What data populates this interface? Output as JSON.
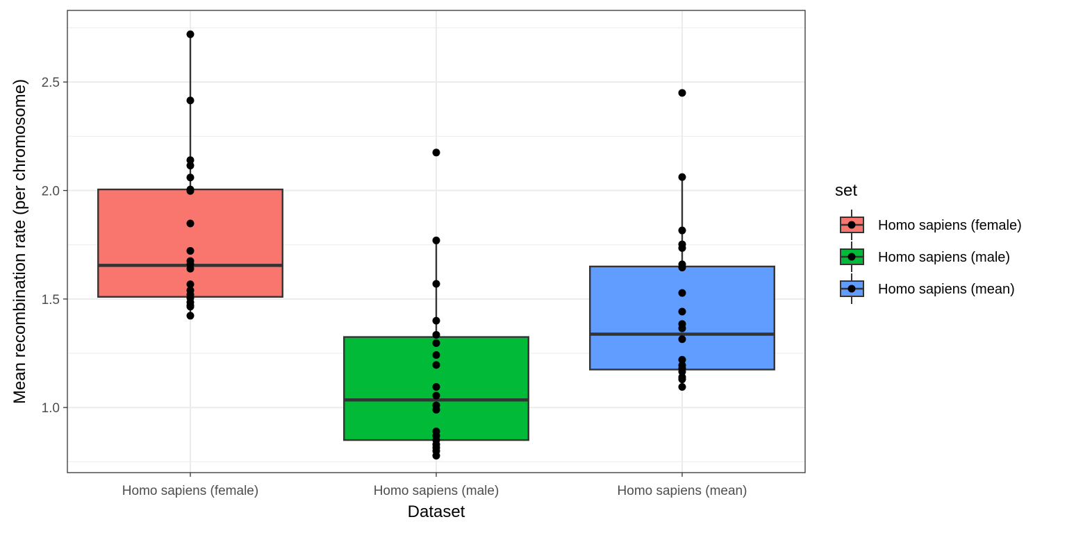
{
  "chart_data": {
    "type": "box",
    "xlabel": "Dataset",
    "ylabel": "Mean recombination rate (per chromosome)",
    "categories": [
      "Homo sapiens (female)",
      "Homo sapiens (male)",
      "Homo sapiens (mean)"
    ],
    "ylim": [
      0.7,
      2.83
    ],
    "yticks": [
      1.0,
      1.5,
      2.0,
      2.5
    ],
    "ytick_labels": [
      "1.0",
      "1.5",
      "2.0",
      "2.5"
    ],
    "grid": true,
    "legend": {
      "title": "set",
      "position": "right",
      "entries": [
        "Homo sapiens (female)",
        "Homo sapiens (male)",
        "Homo sapiens (mean)"
      ]
    },
    "colors": [
      "#F8766D",
      "#00BA38",
      "#619CFF"
    ],
    "series": [
      {
        "name": "Homo sapiens (female)",
        "box": {
          "q1": 1.51,
          "median": 1.655,
          "q3": 2.005,
          "whisker_low": 1.42,
          "whisker_high": 2.72
        },
        "points": [
          2.72,
          2.415,
          2.14,
          2.115,
          2.06,
          2.005,
          1.998,
          1.848,
          1.722,
          1.675,
          1.66,
          1.64,
          1.568,
          1.54,
          1.52,
          1.505,
          1.485,
          1.47,
          1.465,
          1.423
        ]
      },
      {
        "name": "Homo sapiens (male)",
        "box": {
          "q1": 0.85,
          "median": 1.035,
          "q3": 1.325,
          "whisker_low": 0.775,
          "whisker_high": 1.77
        },
        "points": [
          2.175,
          1.77,
          1.57,
          1.4,
          1.335,
          1.297,
          1.242,
          1.196,
          1.095,
          1.055,
          1.01,
          0.99,
          0.89,
          0.87,
          0.85,
          0.83,
          0.815,
          0.8,
          0.778
        ]
      },
      {
        "name": "Homo sapiens (mean)",
        "box": {
          "q1": 1.175,
          "median": 1.338,
          "q3": 1.65,
          "whisker_low": 1.095,
          "whisker_high": 2.062
        },
        "points": [
          2.45,
          2.062,
          1.816,
          1.752,
          1.735,
          1.66,
          1.645,
          1.528,
          1.442,
          1.385,
          1.365,
          1.315,
          1.22,
          1.195,
          1.18,
          1.165,
          1.14,
          1.13,
          1.095
        ]
      }
    ]
  }
}
